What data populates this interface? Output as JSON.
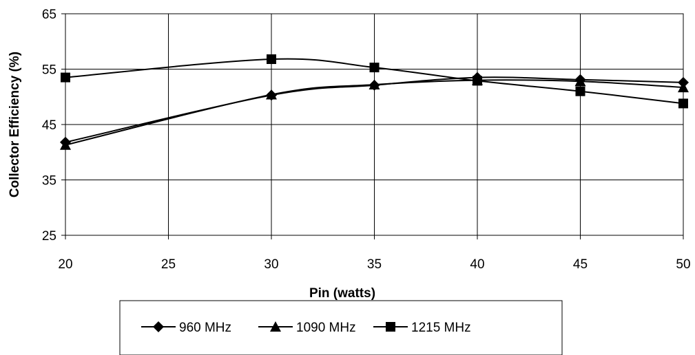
{
  "chart_data": {
    "type": "line",
    "xlabel": "Pin (watts)",
    "ylabel": "Collector Efficiency (%)",
    "xlim": [
      20,
      50
    ],
    "ylim": [
      25,
      65
    ],
    "x_ticks": [
      20,
      25,
      30,
      35,
      40,
      45,
      50
    ],
    "y_ticks": [
      25,
      35,
      45,
      55,
      65
    ],
    "grid": true,
    "legend_position": "bottom",
    "x": [
      20,
      30,
      35,
      40,
      45,
      50
    ],
    "series": [
      {
        "name": "960 MHz",
        "marker": "diamond",
        "values": [
          41.8,
          50.3,
          52.1,
          53.5,
          53.1,
          52.6
        ]
      },
      {
        "name": "1090 MHz",
        "marker": "triangle",
        "values": [
          41.3,
          50.4,
          52.2,
          53.0,
          52.8,
          51.7
        ]
      },
      {
        "name": "1215 MHz",
        "marker": "square",
        "values": [
          53.5,
          56.8,
          55.3,
          52.9,
          51.0,
          48.8
        ]
      }
    ]
  }
}
